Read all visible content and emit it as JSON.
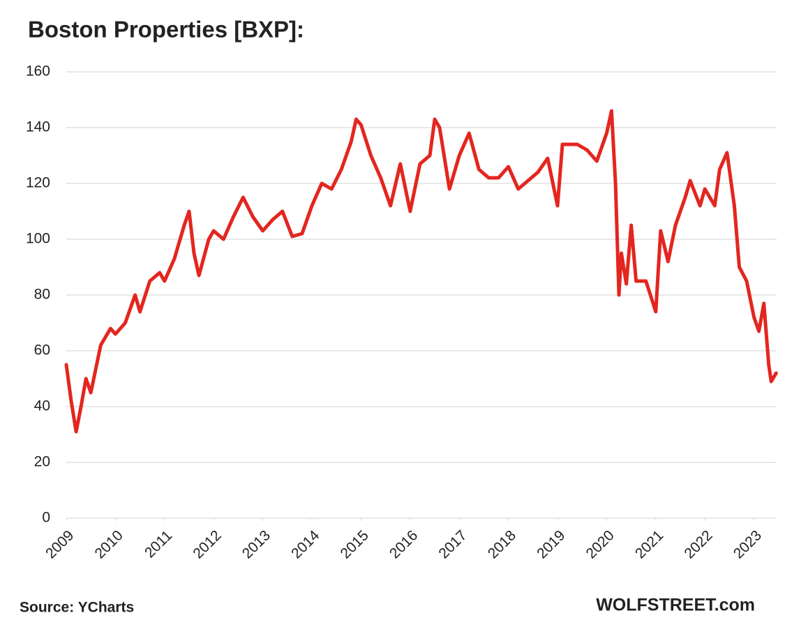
{
  "chart_data": {
    "type": "line",
    "title": "Boston Properties [BXP]:",
    "source": "Source: YCharts",
    "credit": "WOLFSTREET.com",
    "grid": true,
    "xlim": [
      2009,
      2023.45
    ],
    "xticks": [
      2009,
      2010,
      2011,
      2012,
      2013,
      2014,
      2015,
      2016,
      2017,
      2018,
      2019,
      2020,
      2021,
      2022,
      2023
    ],
    "ylim": [
      0,
      160
    ],
    "yticks": [
      0,
      20,
      40,
      60,
      80,
      100,
      120,
      140,
      160
    ],
    "x": [
      2009.0,
      2009.1,
      2009.2,
      2009.3,
      2009.4,
      2009.5,
      2009.7,
      2009.9,
      2010.0,
      2010.2,
      2010.4,
      2010.5,
      2010.7,
      2010.9,
      2011.0,
      2011.2,
      2011.4,
      2011.5,
      2011.6,
      2011.7,
      2011.9,
      2012.0,
      2012.2,
      2012.4,
      2012.6,
      2012.8,
      2013.0,
      2013.2,
      2013.4,
      2013.6,
      2013.8,
      2014.0,
      2014.2,
      2014.4,
      2014.6,
      2014.8,
      2014.9,
      2015.0,
      2015.2,
      2015.4,
      2015.6,
      2015.8,
      2016.0,
      2016.2,
      2016.4,
      2016.5,
      2016.6,
      2016.8,
      2017.0,
      2017.2,
      2017.4,
      2017.6,
      2017.8,
      2018.0,
      2018.2,
      2018.4,
      2018.6,
      2018.8,
      2019.0,
      2019.1,
      2019.4,
      2019.6,
      2019.8,
      2020.0,
      2020.1,
      2020.18,
      2020.25,
      2020.3,
      2020.4,
      2020.5,
      2020.6,
      2020.8,
      2021.0,
      2021.1,
      2021.25,
      2021.4,
      2021.6,
      2021.7,
      2021.9,
      2022.0,
      2022.2,
      2022.3,
      2022.45,
      2022.6,
      2022.7,
      2022.85,
      2023.0,
      2023.1,
      2023.2,
      2023.3,
      2023.35,
      2023.45
    ],
    "series": [
      {
        "name": "BXP",
        "color": "#e3261f",
        "values": [
          55,
          42,
          31,
          40,
          50,
          45,
          62,
          68,
          66,
          70,
          80,
          74,
          85,
          88,
          85,
          93,
          105,
          110,
          95,
          87,
          100,
          103,
          100,
          108,
          115,
          108,
          103,
          107,
          110,
          101,
          102,
          112,
          120,
          118,
          125,
          135,
          143,
          141,
          130,
          122,
          112,
          127,
          110,
          127,
          130,
          143,
          140,
          118,
          130,
          138,
          125,
          122,
          122,
          126,
          118,
          121,
          124,
          129,
          112,
          134,
          134,
          132,
          128,
          138,
          146,
          120,
          80,
          95,
          84,
          105,
          85,
          85,
          74,
          103,
          92,
          105,
          115,
          121,
          112,
          118,
          112,
          125,
          131,
          112,
          90,
          85,
          72,
          67,
          77,
          55,
          49,
          52
        ]
      }
    ]
  }
}
